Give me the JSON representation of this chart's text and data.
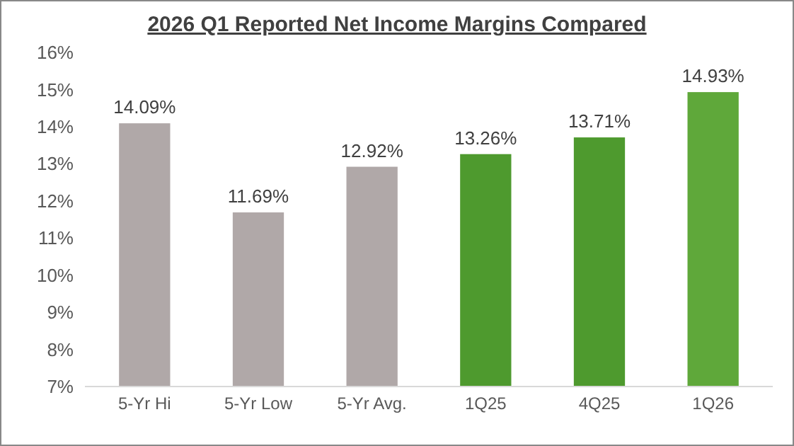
{
  "chart_data": {
    "type": "bar",
    "title": "2026 Q1 Reported Net Income Margins Compared",
    "categories": [
      "5-Yr Hi",
      "5-Yr Low",
      "5-Yr Avg.",
      "1Q25",
      "4Q25",
      "1Q26"
    ],
    "values": [
      14.09,
      11.69,
      12.92,
      13.26,
      13.71,
      14.93
    ],
    "colors": [
      "#b0a8a8",
      "#b0a8a8",
      "#b0a8a8",
      "#4e9a2e",
      "#4e9a2e",
      "#5fa83a"
    ],
    "value_labels": [
      "14.09%",
      "11.69%",
      "12.92%",
      "13.26%",
      "13.71%",
      "14.93%"
    ],
    "ylim": [
      7,
      16
    ],
    "yticks": [
      {
        "value": 7,
        "label": "7%"
      },
      {
        "value": 8,
        "label": "8%"
      },
      {
        "value": 9,
        "label": "9%"
      },
      {
        "value": 10,
        "label": "10%"
      },
      {
        "value": 11,
        "label": "11%"
      },
      {
        "value": 12,
        "label": "12%"
      },
      {
        "value": 13,
        "label": "13%"
      },
      {
        "value": 14,
        "label": "14%"
      },
      {
        "value": 15,
        "label": "15%"
      },
      {
        "value": 16,
        "label": "16%"
      }
    ]
  }
}
